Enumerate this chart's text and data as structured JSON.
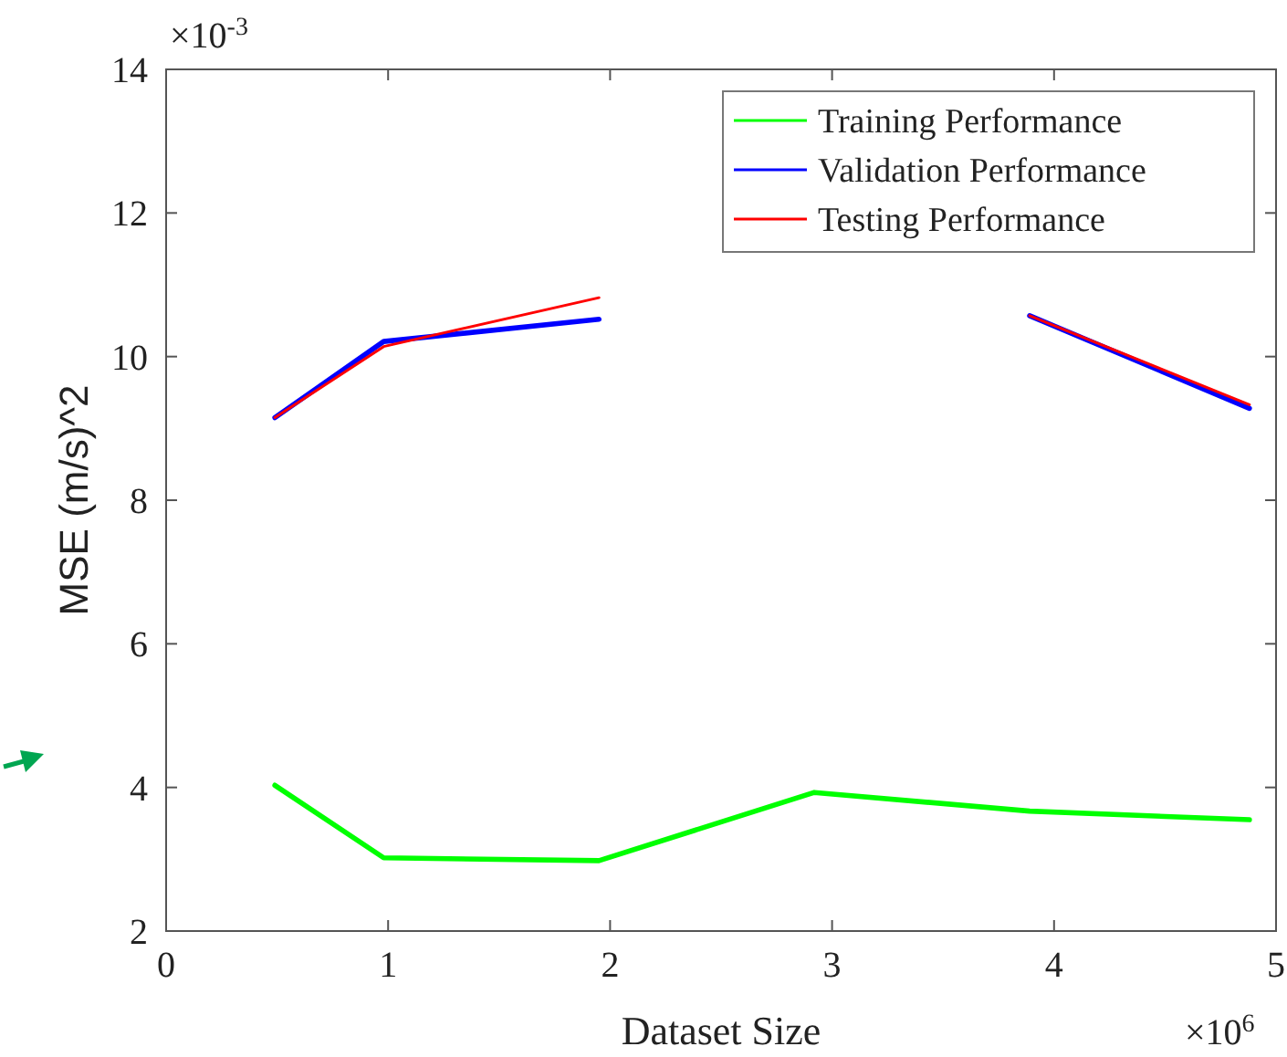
{
  "chart_data": {
    "type": "line",
    "xlabel": "Dataset Size",
    "ylabel": "MSE (m/s)^2",
    "x": [
      0.49,
      0.98,
      1.95,
      2.92,
      3.89,
      4.88
    ],
    "series": [
      {
        "name": "Training Performance",
        "color": "#00ff00",
        "values": [
          4.03,
          3.02,
          2.98,
          3.93,
          3.67,
          3.55
        ]
      },
      {
        "name": "Validation Performance",
        "color": "#0000ff",
        "values": [
          9.15,
          10.21,
          10.52,
          null,
          10.57,
          9.28
        ]
      },
      {
        "name": "Testing Performance",
        "color": "#ff0000",
        "values": [
          9.15,
          10.14,
          10.82,
          null,
          10.57,
          9.33
        ]
      }
    ],
    "xlim": [
      0,
      5
    ],
    "xticks": [
      0,
      1,
      2,
      3,
      4,
      5
    ],
    "ylim": [
      2,
      14
    ],
    "yticks": [
      2,
      4,
      6,
      8,
      10,
      12,
      14
    ],
    "annotations": [
      "×10$^{-3}$",
      "×10$^{6}$"
    ],
    "legend": "top right",
    "grid": false,
    "marker": "none",
    "line_style": "solid"
  }
}
